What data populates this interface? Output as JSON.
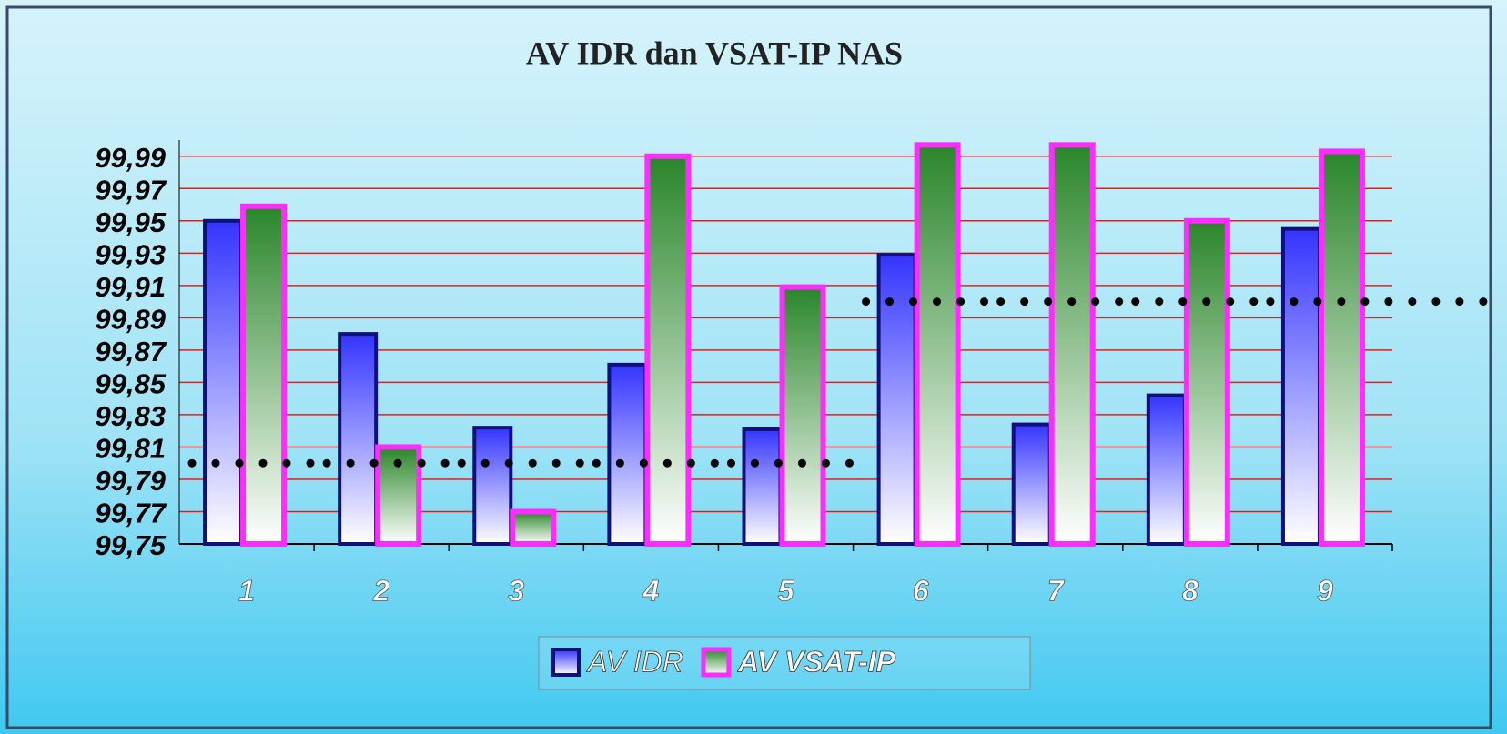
{
  "chart_data": {
    "type": "bar",
    "title": "AV IDR dan  VSAT-IP NAS",
    "categories": [
      "1",
      "2",
      "3",
      "4",
      "5",
      "6",
      "7",
      "8",
      "9"
    ],
    "series": [
      {
        "name": "AV IDR",
        "color": "#3434ff",
        "values": [
          99.95,
          99.88,
          99.822,
          99.861,
          99.821,
          99.929,
          99.824,
          99.842,
          99.945
        ]
      },
      {
        "name": "AV VSAT-IP",
        "color": "#2a862a",
        "values": [
          99.959,
          99.81,
          99.77,
          99.99,
          99.909,
          99.997,
          99.997,
          99.95,
          99.993
        ]
      }
    ],
    "target_values": [
      99.8,
      99.8,
      99.8,
      99.8,
      99.8,
      99.9,
      99.9,
      99.9,
      99.9
    ],
    "ylim": [
      99.75,
      100.0
    ],
    "yticks": [
      {
        "value": 99.75,
        "label": "99,75"
      },
      {
        "value": 99.77,
        "label": "99,77"
      },
      {
        "value": 99.79,
        "label": "99,79"
      },
      {
        "value": 99.81,
        "label": "99,81"
      },
      {
        "value": 99.83,
        "label": "99,83"
      },
      {
        "value": 99.85,
        "label": "99,85"
      },
      {
        "value": 99.87,
        "label": "99,87"
      },
      {
        "value": 99.89,
        "label": "99,89"
      },
      {
        "value": 99.91,
        "label": "99,91"
      },
      {
        "value": 99.93,
        "label": "99,93"
      },
      {
        "value": 99.95,
        "label": "99,95"
      },
      {
        "value": 99.97,
        "label": "99,97"
      },
      {
        "value": 99.99,
        "label": "99,99"
      }
    ],
    "grid": true
  }
}
